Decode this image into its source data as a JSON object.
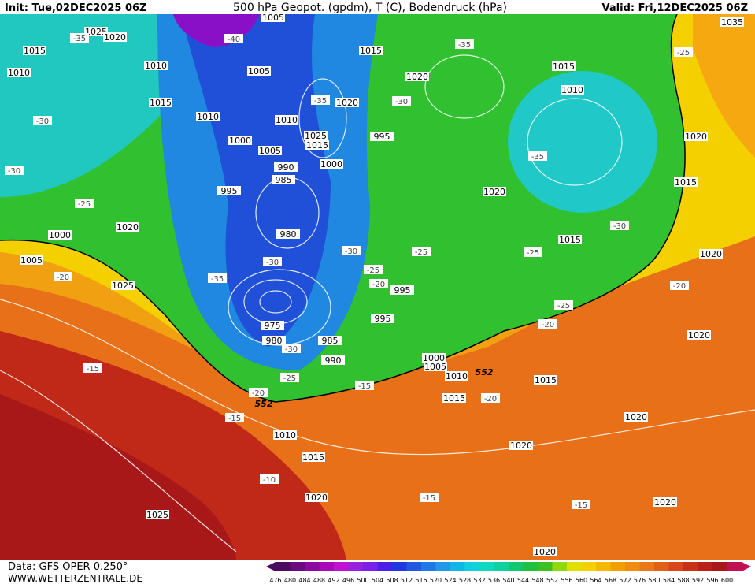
{
  "header": {
    "init": "Init: Tue,02DEC2025 06Z",
    "title": "500 hPa Geopot. (gpdm), T (C), Bodendruck (hPa)",
    "valid": "Valid: Fri,12DEC2025 06Z"
  },
  "footer": {
    "data": "Data: GFS OPER 0.250°",
    "site": "WWW.WETTERZENTRALE.DE"
  },
  "colorbar": {
    "values": [
      476,
      480,
      484,
      488,
      492,
      496,
      500,
      504,
      508,
      512,
      516,
      520,
      524,
      528,
      532,
      536,
      540,
      544,
      548,
      552,
      556,
      560,
      564,
      568,
      572,
      576,
      580,
      584,
      588,
      592,
      596,
      600
    ],
    "colors": [
      "#4b0a5e",
      "#6a0a80",
      "#8a0aa0",
      "#a80ab8",
      "#c010d0",
      "#9a20e0",
      "#7a20e8",
      "#4a20e8",
      "#2038e0",
      "#2058e0",
      "#2078e8",
      "#2098e8",
      "#10b8e8",
      "#10d0e0",
      "#10d8c0",
      "#10d0a0",
      "#10c870",
      "#20c040",
      "#40c020",
      "#90d810",
      "#e0e000",
      "#f5d000",
      "#f5b800",
      "#f0a000",
      "#f08c10",
      "#e87818",
      "#e06018",
      "#d84818",
      "#c83018",
      "#b82018",
      "#a81818",
      "#c01050"
    ]
  },
  "geopotential_labels": [
    "552",
    "552"
  ],
  "isobar_labels": [
    "1005",
    "1025",
    "1020",
    "1015",
    "1010",
    "1010",
    "1005",
    "1015",
    "1020",
    "1015",
    "1010",
    "1035",
    "1020",
    "1015",
    "1010",
    "1010",
    "1025",
    "1015",
    "1000",
    "1005",
    "995",
    "1000",
    "990",
    "985",
    "995",
    "1020",
    "1020",
    "1015",
    "1015",
    "1020",
    "1000",
    "1020",
    "1005",
    "1025",
    "980",
    "995",
    "995",
    "975",
    "980",
    "985",
    "990",
    "1000",
    "1005",
    "1010",
    "1015",
    "1015",
    "1020",
    "1020",
    "1020",
    "1010",
    "1015",
    "1020",
    "1025",
    "1020",
    "1020"
  ],
  "temperature_labels": [
    "-35",
    "-40",
    "-35",
    "-25",
    "-35",
    "-30",
    "-30",
    "-30",
    "-35",
    "-25",
    "-30",
    "-30",
    "-30",
    "-25",
    "-25",
    "-25",
    "-20",
    "-20",
    "-35",
    "-20",
    "-25",
    "-20",
    "-30",
    "-25",
    "-15",
    "-20",
    "-20",
    "-15",
    "-15",
    "-10",
    "-15",
    "-15"
  ]
}
